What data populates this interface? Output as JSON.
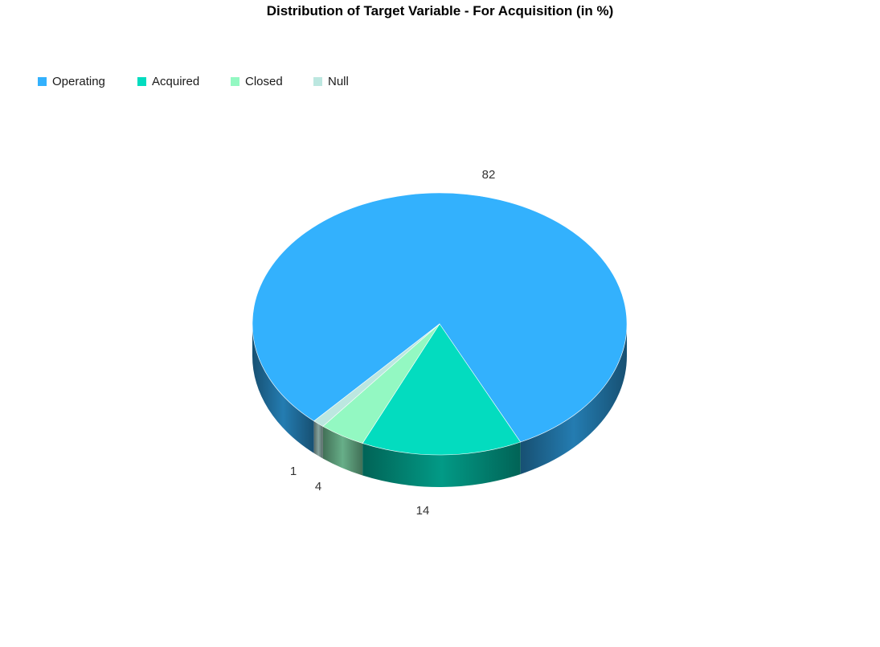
{
  "chart_data": {
    "type": "pie",
    "title": "Distribution of Target Variable - For Acquisition (in %)",
    "style": "3d",
    "legend_position": "top-left",
    "categories": [
      "Operating",
      "Acquired",
      "Closed",
      "Null"
    ],
    "values": [
      82,
      14,
      4,
      1
    ],
    "colors": [
      "#33b1fd",
      "#03dcbf",
      "#93f8c2",
      "#bce7e0"
    ],
    "data_labels": [
      "82",
      "14",
      "4",
      "1"
    ]
  }
}
